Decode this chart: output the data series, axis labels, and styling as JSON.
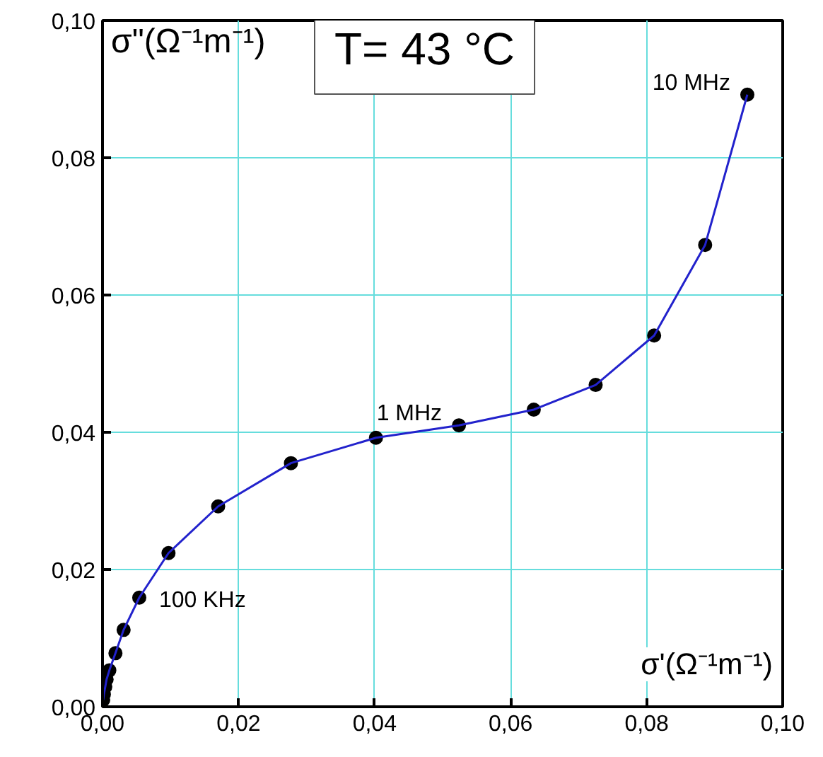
{
  "chart_data": {
    "type": "scatter",
    "xlabel": "σ'(Ω⁻¹m⁻¹)",
    "ylabel": "σ\"(Ω⁻¹m⁻¹)",
    "x": [
      0.0001,
      0.0002,
      0.0004,
      0.0006,
      0.001,
      0.0019,
      0.0031,
      0.0054,
      0.0097,
      0.017,
      0.0277,
      0.0402,
      0.0524,
      0.0634,
      0.0725,
      0.0811,
      0.0886,
      0.0948
    ],
    "series": [
      {
        "color": "#000000",
        "marker": "circle",
        "values": [
          0.001,
          0.0018,
          0.0029,
          0.004,
          0.0053,
          0.0078,
          0.0112,
          0.0159,
          0.0224,
          0.0292,
          0.0355,
          0.0392,
          0.041,
          0.0433,
          0.0469,
          0.0541,
          0.0673,
          0.0892
        ]
      },
      {
        "type": "line",
        "color": "#2222cc",
        "marker": "none",
        "line_style": "solid",
        "values": [
          0.001,
          0.0018,
          0.0029,
          0.004,
          0.0053,
          0.0078,
          0.0112,
          0.0159,
          0.0224,
          0.0292,
          0.0355,
          0.0392,
          0.041,
          0.0433,
          0.0469,
          0.0541,
          0.0673,
          0.0892
        ]
      }
    ],
    "xlim": [
      0,
      0.1
    ],
    "ylim": [
      0,
      0.1
    ],
    "xticks": [
      {
        "value": 0,
        "label": "0,00"
      },
      {
        "value": 0.02,
        "label": "0,02"
      },
      {
        "value": 0.04,
        "label": "0,04"
      },
      {
        "value": 0.06,
        "label": "0,06"
      },
      {
        "value": 0.08,
        "label": "0,08"
      },
      {
        "value": 0.1,
        "label": "0,10"
      }
    ],
    "yticks": [
      {
        "value": 0,
        "label": "0,00"
      },
      {
        "value": 0.02,
        "label": "0,02"
      },
      {
        "value": 0.04,
        "label": "0,04"
      },
      {
        "value": 0.06,
        "label": "0,06"
      },
      {
        "value": 0.08,
        "label": "0,08"
      },
      {
        "value": 0.1,
        "label": "0,10"
      }
    ],
    "grid": true,
    "annotations": [
      "T= 43 °C",
      {
        "text": "10 MHz",
        "x": 0.0948,
        "y": 0.0892
      },
      {
        "text": "1 MHz",
        "x": 0.0524,
        "y": 0.041
      },
      {
        "text": "100 KHz",
        "x": 0.0054,
        "y": 0.0159
      }
    ]
  }
}
